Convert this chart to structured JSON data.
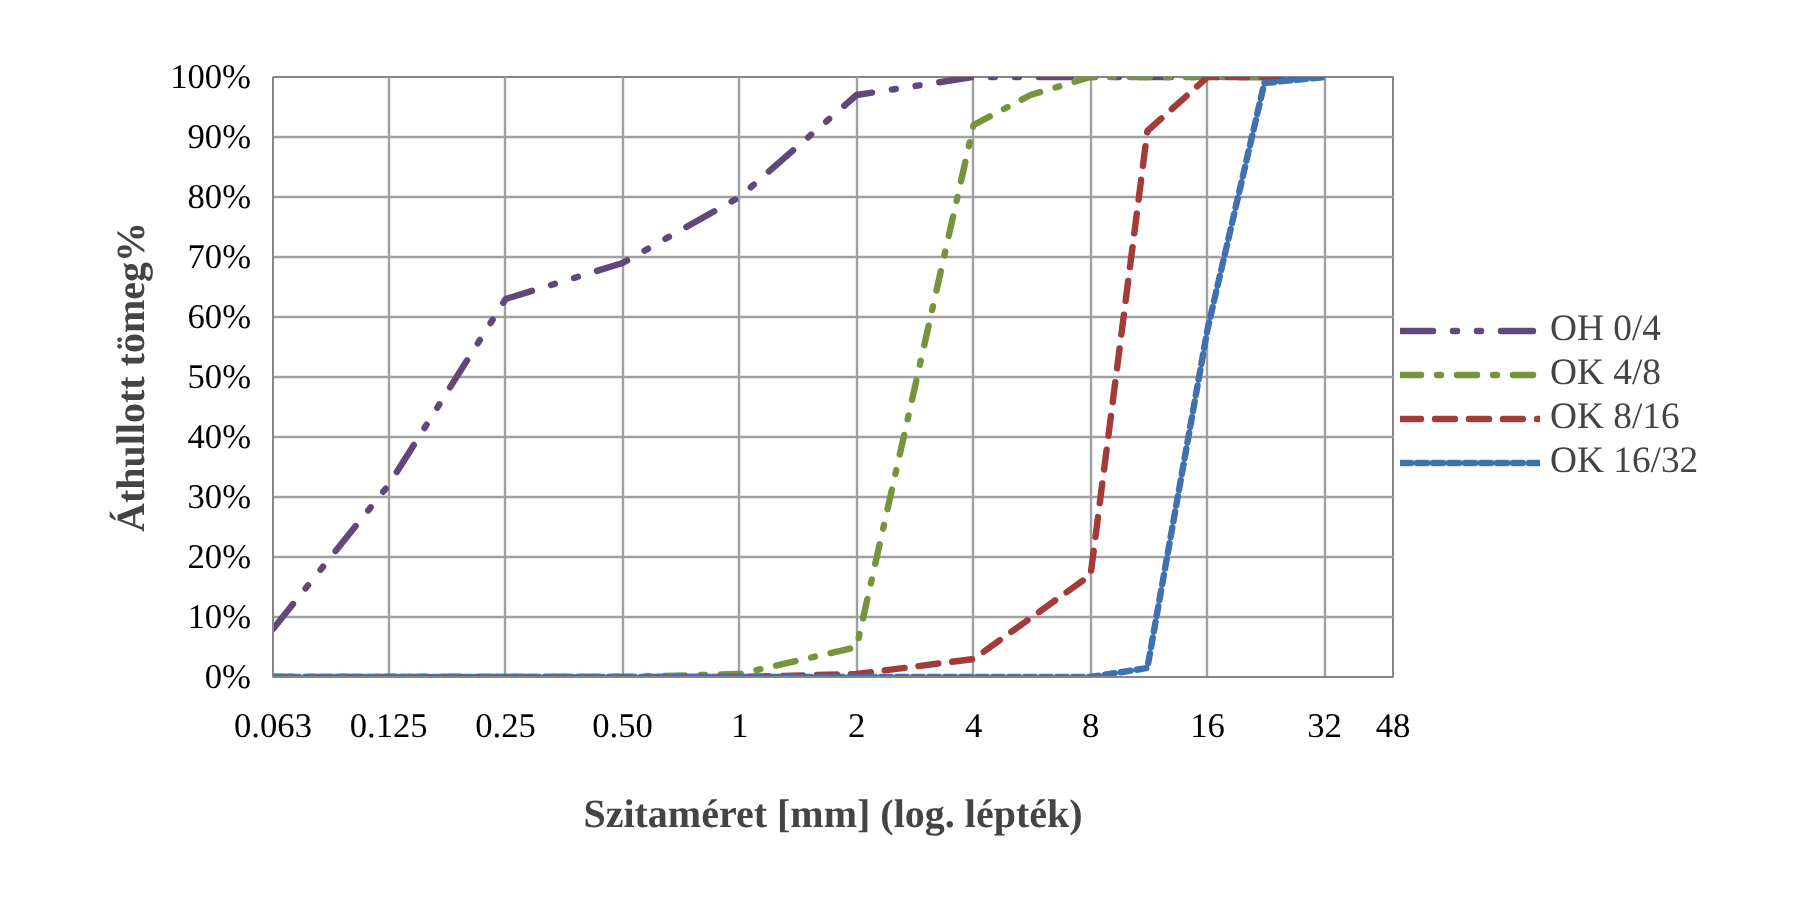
{
  "chart_data": {
    "type": "line",
    "xlabel": "Szitaméret [mm] (log. lépték)",
    "ylabel": "Áthullott tömeg%",
    "log": "x",
    "grid": true,
    "legend": "right",
    "marker": "none",
    "xlim": [
      0.063,
      48
    ],
    "xticks": [
      0.063,
      0.125,
      0.25,
      {
        "value": 0.5,
        "label": "0.50"
      },
      1,
      2,
      4,
      8,
      16,
      32,
      48
    ],
    "ylim": [
      0,
      100
    ],
    "yticks": [
      {
        "value": 0,
        "label": "0%"
      },
      {
        "value": 10,
        "label": "10%"
      },
      {
        "value": 20,
        "label": "20%"
      },
      {
        "value": 30,
        "label": "30%"
      },
      {
        "value": 40,
        "label": "40%"
      },
      {
        "value": 50,
        "label": "50%"
      },
      {
        "value": 60,
        "label": "60%"
      },
      {
        "value": 70,
        "label": "70%"
      },
      {
        "value": 80,
        "label": "80%"
      },
      {
        "value": 90,
        "label": "90%"
      },
      {
        "value": 100,
        "label": "100%"
      }
    ],
    "series": [
      {
        "name": "OH 0/4",
        "color": "#60497a",
        "line_style": "dashdotdot",
        "x": [
          0.063,
          0.125,
          0.25,
          0.5,
          1,
          2,
          4,
          8,
          16,
          32
        ],
        "values": [
          8,
          32,
          63,
          69,
          80,
          97,
          100,
          100,
          100,
          100
        ]
      },
      {
        "name": "OK 4/8",
        "color": "#77933c",
        "line_style": "dashdot",
        "x": [
          0.063,
          0.125,
          0.25,
          0.5,
          1,
          2,
          4,
          5.6,
          8,
          16,
          32
        ],
        "values": [
          0,
          0,
          0,
          0,
          0.5,
          5,
          92,
          97,
          100,
          100,
          100
        ]
      },
      {
        "name": "OK 8/16",
        "color": "#a33b3b",
        "line_style": "dashed",
        "x": [
          0.063,
          0.125,
          0.25,
          0.5,
          1,
          2,
          4,
          8,
          11.2,
          16,
          32
        ],
        "values": [
          0,
          0,
          0,
          0,
          0,
          0.5,
          3,
          17,
          91,
          100,
          100
        ]
      },
      {
        "name": "OK 16/32",
        "color": "#3f70b0",
        "line_style": "dotted",
        "x": [
          0.063,
          0.125,
          0.25,
          0.5,
          1,
          2,
          4,
          8,
          11.2,
          16,
          22.4,
          32
        ],
        "values": [
          0,
          0,
          0,
          0,
          0,
          0,
          0,
          0,
          1.5,
          58,
          99,
          100
        ]
      }
    ]
  }
}
